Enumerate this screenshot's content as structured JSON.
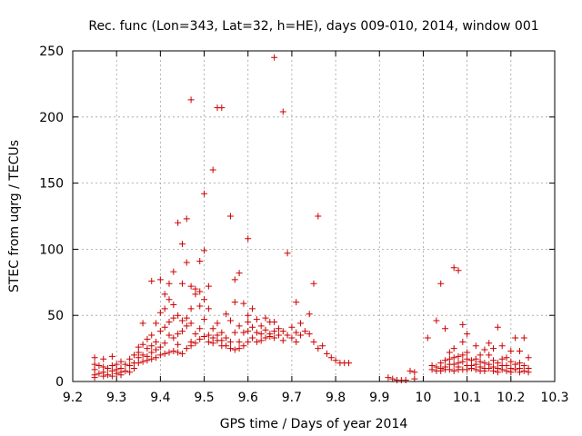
{
  "chart_data": {
    "type": "scatter",
    "title": "Rec. func (Lon=343, Lat=32, h=HE), days 009-010, 2014, window 001",
    "xlabel": "GPS time / Days of year 2014",
    "ylabel": "STEC from uqrg / TECUs",
    "xlim": [
      9.2,
      10.3
    ],
    "ylim": [
      0,
      250
    ],
    "xticks": [
      9.2,
      9.3,
      9.4,
      9.5,
      9.6,
      9.7,
      9.8,
      9.9,
      10,
      10.1,
      10.2,
      10.3
    ],
    "xtick_labels": [
      "9.2",
      "9.3",
      "9.4",
      "9.5",
      "9.6",
      "9.7",
      "9.8",
      "9.9",
      "10",
      "10.1",
      "10.2",
      "10.3"
    ],
    "yticks": [
      0,
      50,
      100,
      150,
      200,
      250
    ],
    "ytick_labels": [
      "0",
      "50",
      "100",
      "150",
      "200",
      "250"
    ],
    "grid": true,
    "marker_color": "#cc0000",
    "marker": "plus",
    "points": [
      [
        9.25,
        18
      ],
      [
        9.25,
        13
      ],
      [
        9.25,
        9
      ],
      [
        9.25,
        5
      ],
      [
        9.25,
        3
      ],
      [
        9.26,
        12
      ],
      [
        9.26,
        6
      ],
      [
        9.27,
        17
      ],
      [
        9.27,
        11
      ],
      [
        9.27,
        7
      ],
      [
        9.27,
        4
      ],
      [
        9.28,
        10
      ],
      [
        9.28,
        5
      ],
      [
        9.29,
        19
      ],
      [
        9.29,
        12
      ],
      [
        9.29,
        8
      ],
      [
        9.29,
        4
      ],
      [
        9.3,
        13
      ],
      [
        9.3,
        9
      ],
      [
        9.3,
        6
      ],
      [
        9.31,
        15
      ],
      [
        9.31,
        10
      ],
      [
        9.31,
        7
      ],
      [
        9.31,
        5
      ],
      [
        9.32,
        13
      ],
      [
        9.32,
        8
      ],
      [
        9.33,
        17
      ],
      [
        9.33,
        12
      ],
      [
        9.33,
        7
      ],
      [
        9.34,
        20
      ],
      [
        9.34,
        14
      ],
      [
        9.34,
        10
      ],
      [
        9.35,
        26
      ],
      [
        9.35,
        22
      ],
      [
        9.35,
        18
      ],
      [
        9.35,
        14
      ],
      [
        9.36,
        44
      ],
      [
        9.36,
        28
      ],
      [
        9.36,
        20
      ],
      [
        9.36,
        15
      ],
      [
        9.37,
        32
      ],
      [
        9.37,
        25
      ],
      [
        9.37,
        19
      ],
      [
        9.37,
        16
      ],
      [
        9.38,
        76
      ],
      [
        9.38,
        35
      ],
      [
        9.38,
        27
      ],
      [
        9.38,
        22
      ],
      [
        9.38,
        17
      ],
      [
        9.39,
        44
      ],
      [
        9.39,
        30
      ],
      [
        9.39,
        24
      ],
      [
        9.39,
        18
      ],
      [
        9.4,
        77
      ],
      [
        9.4,
        52
      ],
      [
        9.4,
        38
      ],
      [
        9.4,
        26
      ],
      [
        9.4,
        20
      ],
      [
        9.41,
        66
      ],
      [
        9.41,
        55
      ],
      [
        9.41,
        41
      ],
      [
        9.41,
        29
      ],
      [
        9.41,
        21
      ],
      [
        9.42,
        74
      ],
      [
        9.42,
        62
      ],
      [
        9.42,
        45
      ],
      [
        9.42,
        35
      ],
      [
        9.42,
        22
      ],
      [
        9.43,
        83
      ],
      [
        9.43,
        58
      ],
      [
        9.43,
        48
      ],
      [
        9.43,
        33
      ],
      [
        9.43,
        23
      ],
      [
        9.44,
        120
      ],
      [
        9.44,
        50
      ],
      [
        9.44,
        36
      ],
      [
        9.44,
        28
      ],
      [
        9.44,
        22
      ],
      [
        9.45,
        104
      ],
      [
        9.45,
        74
      ],
      [
        9.45,
        46
      ],
      [
        9.45,
        38
      ],
      [
        9.45,
        21
      ],
      [
        9.46,
        123
      ],
      [
        9.46,
        90
      ],
      [
        9.46,
        48
      ],
      [
        9.46,
        42
      ],
      [
        9.46,
        25
      ],
      [
        9.47,
        213
      ],
      [
        9.47,
        72
      ],
      [
        9.47,
        55
      ],
      [
        9.47,
        44
      ],
      [
        9.47,
        30
      ],
      [
        9.47,
        27
      ],
      [
        9.48,
        70
      ],
      [
        9.48,
        66
      ],
      [
        9.48,
        36
      ],
      [
        9.48,
        29
      ],
      [
        9.49,
        91
      ],
      [
        9.49,
        68
      ],
      [
        9.49,
        57
      ],
      [
        9.49,
        40
      ],
      [
        9.49,
        32
      ],
      [
        9.5,
        142
      ],
      [
        9.5,
        99
      ],
      [
        9.5,
        62
      ],
      [
        9.5,
        47
      ],
      [
        9.5,
        34
      ],
      [
        9.51,
        72
      ],
      [
        9.51,
        55
      ],
      [
        9.51,
        35
      ],
      [
        9.51,
        30
      ],
      [
        9.52,
        160
      ],
      [
        9.52,
        40
      ],
      [
        9.52,
        33
      ],
      [
        9.52,
        29
      ],
      [
        9.53,
        207
      ],
      [
        9.53,
        44
      ],
      [
        9.53,
        35
      ],
      [
        9.53,
        31
      ],
      [
        9.54,
        207
      ],
      [
        9.54,
        37
      ],
      [
        9.54,
        31
      ],
      [
        9.54,
        27
      ],
      [
        9.55,
        51
      ],
      [
        9.55,
        33
      ],
      [
        9.55,
        27
      ],
      [
        9.56,
        125
      ],
      [
        9.56,
        46
      ],
      [
        9.56,
        30
      ],
      [
        9.56,
        25
      ],
      [
        9.57,
        77
      ],
      [
        9.57,
        60
      ],
      [
        9.57,
        37
      ],
      [
        9.57,
        24
      ],
      [
        9.58,
        82
      ],
      [
        9.58,
        42
      ],
      [
        9.58,
        30
      ],
      [
        9.58,
        25
      ],
      [
        9.59,
        59
      ],
      [
        9.59,
        37
      ],
      [
        9.59,
        27
      ],
      [
        9.6,
        108
      ],
      [
        9.6,
        50
      ],
      [
        9.6,
        45
      ],
      [
        9.6,
        38
      ],
      [
        9.6,
        30
      ],
      [
        9.61,
        55
      ],
      [
        9.61,
        41
      ],
      [
        9.61,
        33
      ],
      [
        9.62,
        47
      ],
      [
        9.62,
        37
      ],
      [
        9.62,
        30
      ],
      [
        9.63,
        42
      ],
      [
        9.63,
        36
      ],
      [
        9.63,
        31
      ],
      [
        9.64,
        48
      ],
      [
        9.64,
        39
      ],
      [
        9.64,
        33
      ],
      [
        9.65,
        45
      ],
      [
        9.65,
        36
      ],
      [
        9.65,
        34
      ],
      [
        9.66,
        245
      ],
      [
        9.66,
        45
      ],
      [
        9.66,
        38
      ],
      [
        9.66,
        33
      ],
      [
        9.67,
        40
      ],
      [
        9.67,
        35
      ],
      [
        9.68,
        204
      ],
      [
        9.68,
        38
      ],
      [
        9.68,
        31
      ],
      [
        9.69,
        97
      ],
      [
        9.69,
        35
      ],
      [
        9.7,
        41
      ],
      [
        9.7,
        33
      ],
      [
        9.71,
        60
      ],
      [
        9.71,
        37
      ],
      [
        9.71,
        30
      ],
      [
        9.72,
        44
      ],
      [
        9.72,
        35
      ],
      [
        9.73,
        38
      ],
      [
        9.74,
        51
      ],
      [
        9.74,
        36
      ],
      [
        9.75,
        74
      ],
      [
        9.75,
        30
      ],
      [
        9.76,
        125
      ],
      [
        9.76,
        25
      ],
      [
        9.77,
        27
      ],
      [
        9.78,
        21
      ],
      [
        9.79,
        18
      ],
      [
        9.8,
        16
      ],
      [
        9.81,
        14
      ],
      [
        9.82,
        14
      ],
      [
        9.83,
        14
      ],
      [
        9.92,
        3
      ],
      [
        9.93,
        2
      ],
      [
        9.94,
        1
      ],
      [
        9.95,
        1
      ],
      [
        9.96,
        1
      ],
      [
        9.97,
        8
      ],
      [
        9.98,
        7
      ],
      [
        9.98,
        2
      ],
      [
        10.01,
        33
      ],
      [
        10.02,
        12
      ],
      [
        10.02,
        9
      ],
      [
        10.03,
        46
      ],
      [
        10.03,
        11
      ],
      [
        10.03,
        8
      ],
      [
        10.04,
        74
      ],
      [
        10.04,
        14
      ],
      [
        10.04,
        10
      ],
      [
        10.04,
        8
      ],
      [
        10.05,
        40
      ],
      [
        10.05,
        16
      ],
      [
        10.05,
        11
      ],
      [
        10.05,
        9
      ],
      [
        10.06,
        22
      ],
      [
        10.06,
        17
      ],
      [
        10.06,
        13
      ],
      [
        10.06,
        9
      ],
      [
        10.07,
        86
      ],
      [
        10.07,
        25
      ],
      [
        10.07,
        18
      ],
      [
        10.07,
        13
      ],
      [
        10.07,
        8
      ],
      [
        10.08,
        84
      ],
      [
        10.08,
        19
      ],
      [
        10.08,
        14
      ],
      [
        10.08,
        11
      ],
      [
        10.08,
        9
      ],
      [
        10.09,
        43
      ],
      [
        10.09,
        30
      ],
      [
        10.09,
        20
      ],
      [
        10.09,
        15
      ],
      [
        10.09,
        9
      ],
      [
        10.1,
        36
      ],
      [
        10.1,
        22
      ],
      [
        10.1,
        17
      ],
      [
        10.1,
        12
      ],
      [
        10.1,
        9
      ],
      [
        10.11,
        16
      ],
      [
        10.11,
        12
      ],
      [
        10.11,
        10
      ],
      [
        10.12,
        27
      ],
      [
        10.12,
        17
      ],
      [
        10.12,
        13
      ],
      [
        10.12,
        9
      ],
      [
        10.13,
        20
      ],
      [
        10.13,
        15
      ],
      [
        10.13,
        11
      ],
      [
        10.13,
        8
      ],
      [
        10.14,
        24
      ],
      [
        10.14,
        14
      ],
      [
        10.14,
        10
      ],
      [
        10.14,
        8
      ],
      [
        10.15,
        29
      ],
      [
        10.15,
        20
      ],
      [
        10.15,
        13
      ],
      [
        10.15,
        10
      ],
      [
        10.16,
        25
      ],
      [
        10.16,
        16
      ],
      [
        10.16,
        11
      ],
      [
        10.16,
        8
      ],
      [
        10.17,
        41
      ],
      [
        10.17,
        14
      ],
      [
        10.17,
        10
      ],
      [
        10.17,
        7
      ],
      [
        10.18,
        27
      ],
      [
        10.18,
        17
      ],
      [
        10.18,
        12
      ],
      [
        10.18,
        9
      ],
      [
        10.19,
        18
      ],
      [
        10.19,
        12
      ],
      [
        10.19,
        8
      ],
      [
        10.2,
        23
      ],
      [
        10.2,
        15
      ],
      [
        10.2,
        10
      ],
      [
        10.2,
        7
      ],
      [
        10.21,
        33
      ],
      [
        10.21,
        13
      ],
      [
        10.21,
        9
      ],
      [
        10.22,
        23
      ],
      [
        10.22,
        14
      ],
      [
        10.22,
        10
      ],
      [
        10.22,
        7
      ],
      [
        10.23,
        33
      ],
      [
        10.23,
        12
      ],
      [
        10.23,
        8
      ],
      [
        10.24,
        18
      ],
      [
        10.24,
        10
      ],
      [
        10.24,
        7
      ]
    ]
  }
}
